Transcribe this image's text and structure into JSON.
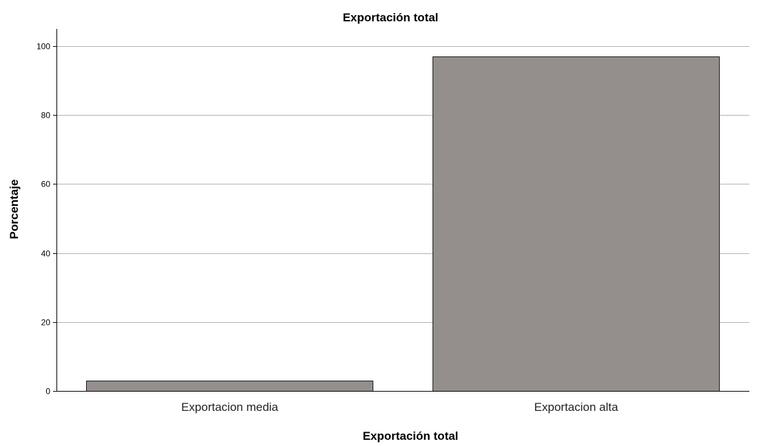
{
  "chart_data": {
    "type": "bar",
    "title": "Exportación total",
    "xlabel": "Exportación total",
    "ylabel": "Porcentaje",
    "categories": [
      "Exportacion media",
      "Exportacion alta"
    ],
    "values": [
      2.9,
      97.1
    ],
    "ylim": [
      0,
      105
    ],
    "yticks": [
      0,
      20,
      40,
      60,
      80,
      100
    ],
    "grid": true,
    "legend": "none",
    "colors": {
      "bar_fill": "#948f8d",
      "bar_stroke": "#1a1a1a",
      "grid": "#b3b3b3",
      "axis": "#000000"
    }
  }
}
